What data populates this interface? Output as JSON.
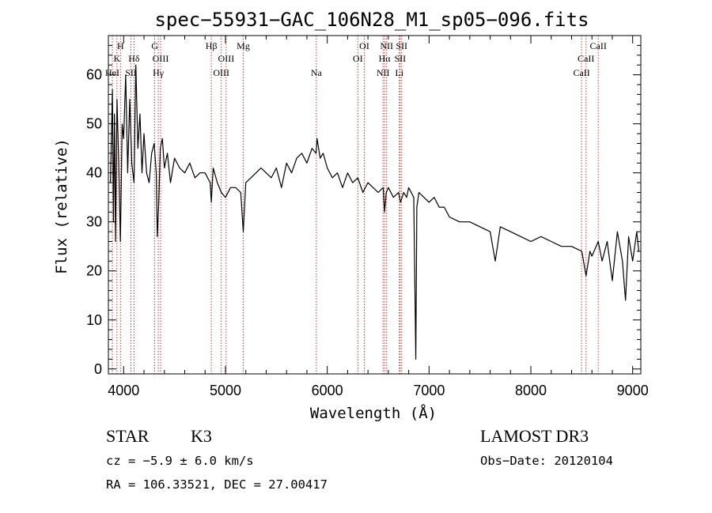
{
  "chart_data": {
    "type": "line",
    "title": "spec−55931−GAC_106N28_M1_sp05−096.fits",
    "xlabel": "Wavelength (Å)",
    "ylabel": "Flux (relative)",
    "xlim": [
      3850,
      9080
    ],
    "ylim": [
      -1,
      68
    ],
    "x_ticks": [
      4000,
      5000,
      6000,
      7000,
      8000,
      9000
    ],
    "y_ticks": [
      0,
      10,
      20,
      30,
      40,
      50,
      60
    ],
    "grid": false,
    "series": [
      {
        "name": "flux",
        "color": "#000000",
        "x": [
          3870,
          3890,
          3900,
          3910,
          3920,
          3935,
          3950,
          3968,
          3985,
          4000,
          4020,
          4040,
          4060,
          4080,
          4102,
          4120,
          4140,
          4160,
          4180,
          4200,
          4225,
          4250,
          4275,
          4300,
          4320,
          4330,
          4345,
          4360,
          4380,
          4400,
          4430,
          4460,
          4500,
          4550,
          4600,
          4650,
          4700,
          4750,
          4800,
          4850,
          4861,
          4880,
          4920,
          4960,
          5000,
          5050,
          5100,
          5150,
          5175,
          5200,
          5250,
          5300,
          5350,
          5400,
          5450,
          5500,
          5550,
          5600,
          5650,
          5700,
          5750,
          5800,
          5850,
          5890,
          5900,
          5930,
          5960,
          6000,
          6050,
          6100,
          6150,
          6200,
          6250,
          6300,
          6350,
          6400,
          6450,
          6500,
          6550,
          6563,
          6580,
          6600,
          6650,
          6700,
          6720,
          6750,
          6780,
          6800,
          6850,
          6870,
          6880,
          6900,
          6950,
          7000,
          7050,
          7100,
          7150,
          7200,
          7300,
          7400,
          7500,
          7600,
          7650,
          7700,
          7800,
          7900,
          8000,
          8100,
          8200,
          8300,
          8400,
          8500,
          8542,
          8580,
          8600,
          8662,
          8700,
          8750,
          8800,
          8850,
          8900,
          8930,
          8960,
          9000,
          9040,
          9060
        ],
        "values": [
          38,
          57,
          30,
          52,
          26,
          55,
          43,
          26,
          50,
          47,
          60,
          40,
          55,
          42,
          38,
          62,
          45,
          52,
          40,
          48,
          40,
          38,
          44,
          46,
          40,
          27,
          34,
          45,
          47,
          41,
          44,
          38,
          43,
          41,
          40,
          42,
          39,
          40,
          40,
          38,
          34,
          41,
          38,
          36,
          35,
          37,
          37,
          36,
          28,
          38,
          39,
          40,
          41,
          40,
          39,
          41,
          37,
          42,
          40,
          43,
          44,
          42,
          45,
          44,
          47,
          43,
          44,
          41,
          39,
          40,
          37,
          40,
          38,
          39,
          36,
          38,
          37,
          36,
          37,
          32,
          36,
          37,
          35,
          36,
          34,
          36,
          35,
          37,
          35,
          2,
          33,
          36,
          35,
          34,
          35,
          33,
          33,
          31,
          30,
          30,
          29,
          28,
          22,
          29,
          28,
          27,
          26,
          27,
          26,
          25,
          25,
          24,
          19,
          24,
          23,
          26,
          22,
          26,
          18,
          28,
          22,
          14,
          27,
          22,
          28,
          24
        ]
      }
    ],
    "spectral_lines": [
      {
        "wavelength": 3889,
        "label": "HeI",
        "row": 3
      },
      {
        "wavelength": 3934,
        "label": "K",
        "row": 2
      },
      {
        "wavelength": 3969,
        "label": "H",
        "row": 1
      },
      {
        "wavelength": 4072,
        "label": "SII",
        "row": 3
      },
      {
        "wavelength": 4102,
        "label": "Hδ",
        "row": 2
      },
      {
        "wavelength": 4305,
        "label": "G",
        "row": 1
      },
      {
        "wavelength": 4340,
        "label": "Hγ",
        "row": 3
      },
      {
        "wavelength": 4363,
        "label": "OIII",
        "row": 2
      },
      {
        "wavelength": 4861,
        "label": "Hβ",
        "row": 1
      },
      {
        "wavelength": 4959,
        "label": "OIII",
        "row": 3
      },
      {
        "wavelength": 5007,
        "label": "OIII",
        "row": 2
      },
      {
        "wavelength": 5175,
        "label": "Mg",
        "row": 1
      },
      {
        "wavelength": 5893,
        "label": "Na",
        "row": 3
      },
      {
        "wavelength": 6300,
        "label": "OI",
        "row": 2
      },
      {
        "wavelength": 6364,
        "label": "OI",
        "row": 1
      },
      {
        "wavelength": 6548,
        "label": "NII",
        "row": 3
      },
      {
        "wavelength": 6563,
        "label": "Hα",
        "row": 2
      },
      {
        "wavelength": 6583,
        "label": "NII",
        "row": 1
      },
      {
        "wavelength": 6708,
        "label": "Li",
        "row": 3
      },
      {
        "wavelength": 6716,
        "label": "SII",
        "row": 2
      },
      {
        "wavelength": 6731,
        "label": "SII",
        "row": 1
      },
      {
        "wavelength": 8498,
        "label": "CaII",
        "row": 3
      },
      {
        "wavelength": 8542,
        "label": "CaII",
        "row": 2
      },
      {
        "wavelength": 8662,
        "label": "CaII",
        "row": 1
      }
    ]
  },
  "info": {
    "class_label": "STAR",
    "subclass": "K3",
    "survey": "LAMOST DR3",
    "cz": "cz = −5.9 ± 6.0 km/s",
    "obs_date": "Obs−Date: 20120104",
    "coords": "RA = 106.33521, DEC =  27.00417"
  },
  "colors": {
    "spectrum": "#000000",
    "line_marker": "#cc2222",
    "background": "#ffffff"
  }
}
